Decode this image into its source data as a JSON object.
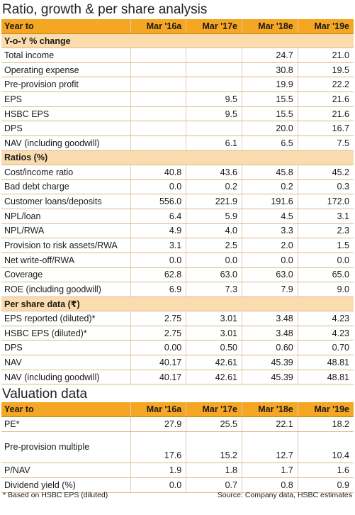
{
  "title": "Ratio, growth & per share analysis",
  "ratio_table": {
    "header": [
      "Year to",
      "Mar '16a",
      "Mar '17e",
      "Mar '18e",
      "Mar '19e"
    ],
    "sections": [
      {
        "name": "Y-o-Y % change",
        "rows": [
          {
            "label": "Total income",
            "values": [
              "",
              "",
              "24.7",
              "21.0"
            ]
          },
          {
            "label": "Operating expense",
            "values": [
              "",
              "",
              "30.8",
              "19.5"
            ]
          },
          {
            "label": "Pre-provision profit",
            "values": [
              "",
              "",
              "19.9",
              "22.2"
            ]
          },
          {
            "label": "EPS",
            "values": [
              "",
              "9.5",
              "15.5",
              "21.6"
            ]
          },
          {
            "label": "HSBC EPS",
            "values": [
              "",
              "9.5",
              "15.5",
              "21.6"
            ]
          },
          {
            "label": "DPS",
            "values": [
              "",
              "",
              "20.0",
              "16.7"
            ]
          },
          {
            "label": "NAV (including goodwill)",
            "values": [
              "",
              "6.1",
              "6.5",
              "7.5"
            ]
          }
        ]
      },
      {
        "name": "Ratios (%)",
        "rows": [
          {
            "label": "Cost/income ratio",
            "values": [
              "40.8",
              "43.6",
              "45.8",
              "45.2"
            ]
          },
          {
            "label": "Bad debt charge",
            "values": [
              "0.0",
              "0.2",
              "0.2",
              "0.3"
            ]
          },
          {
            "label": "Customer loans/deposits",
            "values": [
              "556.0",
              "221.9",
              "191.6",
              "172.0"
            ]
          },
          {
            "label": "NPL/loan",
            "values": [
              "6.4",
              "5.9",
              "4.5",
              "3.1"
            ]
          },
          {
            "label": "NPL/RWA",
            "values": [
              "4.9",
              "4.0",
              "3.3",
              "2.3"
            ]
          },
          {
            "label": "Provision to risk assets/RWA",
            "values": [
              "3.1",
              "2.5",
              "2.0",
              "1.5"
            ]
          },
          {
            "label": "Net write-off/RWA",
            "values": [
              "0.0",
              "0.0",
              "0.0",
              "0.0"
            ]
          },
          {
            "label": "Coverage",
            "values": [
              "62.8",
              "63.0",
              "63.0",
              "65.0"
            ]
          },
          {
            "label": "ROE (including goodwill)",
            "values": [
              "6.9",
              "7.3",
              "7.9",
              "9.0"
            ]
          }
        ]
      },
      {
        "name": "Per share data (₹)",
        "rows": [
          {
            "label": "EPS reported (diluted)*",
            "values": [
              "2.75",
              "3.01",
              "3.48",
              "4.23"
            ]
          },
          {
            "label": "HSBC EPS (diluted)*",
            "values": [
              "2.75",
              "3.01",
              "3.48",
              "4.23"
            ]
          },
          {
            "label": "DPS",
            "values": [
              "0.00",
              "0.50",
              "0.60",
              "0.70"
            ]
          },
          {
            "label": "NAV",
            "values": [
              "40.17",
              "42.61",
              "45.39",
              "48.81"
            ]
          },
          {
            "label": "NAV (including goodwill)",
            "values": [
              "40.17",
              "42.61",
              "45.39",
              "48.81"
            ]
          }
        ]
      }
    ]
  },
  "valuation_title": "Valuation data",
  "valuation_table": {
    "header": [
      "Year to",
      "Mar '16a",
      "Mar '17e",
      "Mar '18e",
      "Mar '19e"
    ],
    "rows": [
      {
        "label": "PE*",
        "values": [
          "27.9",
          "25.5",
          "22.1",
          "18.2"
        ]
      },
      {
        "label": "Pre-provision multiple",
        "values": [
          "17.6",
          "15.2",
          "12.7",
          "10.4"
        ],
        "tall": true
      },
      {
        "label": "P/NAV",
        "values": [
          "1.9",
          "1.8",
          "1.7",
          "1.6"
        ]
      },
      {
        "label": "Dividend yield (%)",
        "values": [
          "0.0",
          "0.7",
          "0.8",
          "0.9"
        ]
      }
    ]
  },
  "footnote": "* Based on HSBC EPS (diluted)",
  "source": "Source: Company data, HSBC estimates",
  "colors": {
    "header": "#f5a623",
    "section": "#fbdcae"
  }
}
